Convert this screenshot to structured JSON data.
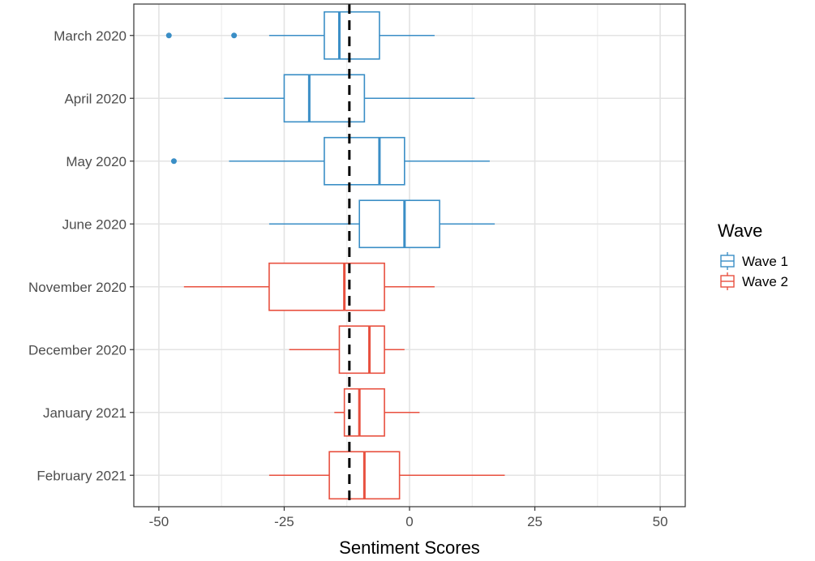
{
  "chart_data": {
    "type": "boxplot",
    "orientation": "horizontal",
    "xlabel": "Sentiment Scores",
    "ylabel": "",
    "xlim": [
      -55,
      55
    ],
    "x_ticks": [
      -50,
      -25,
      0,
      25,
      50
    ],
    "x_tick_labels": [
      "-50",
      "-25",
      "0",
      "25",
      "50"
    ],
    "grid": true,
    "reference_line": {
      "x": -12,
      "style": "dashed",
      "color": "#000000"
    },
    "legend": {
      "title": "Wave",
      "placement": "right",
      "entries": [
        {
          "name": "Wave 1",
          "color": "#3a8ec6"
        },
        {
          "name": "Wave 2",
          "color": "#e8503f"
        }
      ]
    },
    "categories": [
      "March 2020",
      "April 2020",
      "May 2020",
      "June 2020",
      "November 2020",
      "December 2020",
      "January 2021",
      "February 2021"
    ],
    "boxes": [
      {
        "category": "March 2020",
        "wave": "Wave 1",
        "whisker_low": -28,
        "q1": -17,
        "median": -14,
        "q3": -6,
        "whisker_high": 5,
        "outliers": [
          -48,
          -35
        ]
      },
      {
        "category": "April 2020",
        "wave": "Wave 1",
        "whisker_low": -37,
        "q1": -25,
        "median": -20,
        "q3": -9,
        "whisker_high": 13,
        "outliers": []
      },
      {
        "category": "May 2020",
        "wave": "Wave 1",
        "whisker_low": -36,
        "q1": -17,
        "median": -6,
        "q3": -1,
        "whisker_high": 16,
        "outliers": [
          -47
        ]
      },
      {
        "category": "June 2020",
        "wave": "Wave 1",
        "whisker_low": -28,
        "q1": -10,
        "median": -1,
        "q3": 6,
        "whisker_high": 17,
        "outliers": []
      },
      {
        "category": "November 2020",
        "wave": "Wave 2",
        "whisker_low": -45,
        "q1": -28,
        "median": -13,
        "q3": -5,
        "whisker_high": 5,
        "outliers": []
      },
      {
        "category": "December 2020",
        "wave": "Wave 2",
        "whisker_low": -24,
        "q1": -14,
        "median": -8,
        "q3": -5,
        "whisker_high": -1,
        "outliers": []
      },
      {
        "category": "January 2021",
        "wave": "Wave 2",
        "whisker_low": -15,
        "q1": -13,
        "median": -10,
        "q3": -5,
        "whisker_high": 2,
        "outliers": []
      },
      {
        "category": "February 2021",
        "wave": "Wave 2",
        "whisker_low": -28,
        "q1": -16,
        "median": -9,
        "q3": -2,
        "whisker_high": 19,
        "outliers": []
      }
    ]
  }
}
